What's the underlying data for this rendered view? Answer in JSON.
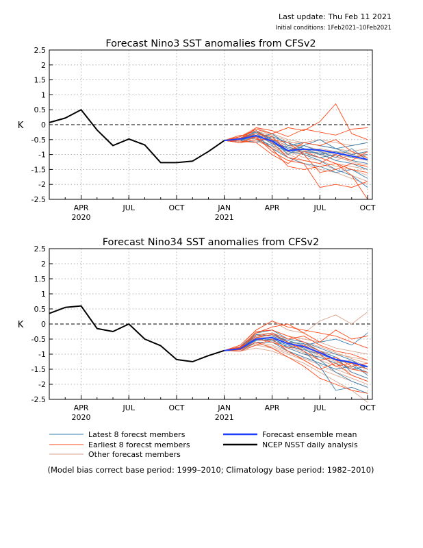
{
  "header": {
    "last_update": "Last update: Thu Feb 11 2021",
    "initial_conditions": "Initial conditions: 1Feb2021–10Feb2021"
  },
  "chart_data": [
    {
      "type": "line",
      "title": "Forecast Nino3 SST anomalies from CFSv2",
      "ylabel": "K",
      "ylim": [
        -2.5,
        2.5
      ],
      "yticks": [
        -2.5,
        -2,
        -1.5,
        -1,
        -0.5,
        0,
        0.5,
        1,
        1.5,
        2,
        2.5
      ],
      "ytick_labels": [
        "-2.5",
        "-2",
        "-1.5",
        "-1",
        "-0.5",
        "0",
        "0.5",
        "1",
        "1.5",
        "2",
        "2.5"
      ],
      "xlim": [
        0,
        20.3
      ],
      "xticks": [
        {
          "x": 2,
          "label": "APR",
          "year": "2020"
        },
        {
          "x": 5,
          "label": "JUL"
        },
        {
          "x": 8,
          "label": "OCT"
        },
        {
          "x": 11,
          "label": "JAN",
          "year": "2021"
        },
        {
          "x": 14,
          "label": "APR"
        },
        {
          "x": 17,
          "label": "JUL"
        },
        {
          "x": 20,
          "label": "OCT"
        }
      ],
      "grid": true,
      "zero_line": "dashed",
      "series": [
        {
          "name": "NCEP NSST daily analysis",
          "color": "#000000",
          "x": [
            0,
            1,
            2,
            3,
            4,
            5,
            6,
            7,
            8,
            9,
            10,
            11
          ],
          "y": [
            0.07,
            0.22,
            0.5,
            -0.18,
            -0.7,
            -0.48,
            -0.68,
            -1.27,
            -1.27,
            -1.22,
            -0.9,
            -0.53
          ]
        },
        {
          "name": "Forecast ensemble mean",
          "color": "#1f3fff",
          "x": [
            11,
            12,
            13,
            14,
            15,
            16,
            17,
            18,
            19,
            20
          ],
          "y": [
            -0.53,
            -0.48,
            -0.37,
            -0.55,
            -0.87,
            -0.82,
            -0.85,
            -0.95,
            -1.05,
            -1.17
          ]
        }
      ],
      "members": {
        "latest": [
          [
            -0.53,
            -0.55,
            -0.2,
            -0.6,
            -0.9,
            -1.0,
            -1.2,
            -1.5,
            -1.7,
            -2.1
          ],
          [
            -0.53,
            -0.5,
            -0.45,
            -0.3,
            -0.7,
            -0.6,
            -0.7,
            -0.8,
            -1.0,
            -0.9
          ],
          [
            -0.53,
            -0.4,
            -0.2,
            -0.5,
            -0.8,
            -0.95,
            -1.1,
            -1.0,
            -1.2,
            -1.3
          ],
          [
            -0.53,
            -0.6,
            -0.5,
            -0.7,
            -0.9,
            -0.7,
            -0.5,
            -0.8,
            -0.7,
            -0.6
          ],
          [
            -0.53,
            -0.45,
            -0.35,
            -0.8,
            -1.1,
            -1.3,
            -1.4,
            -1.6,
            -1.5,
            -1.8
          ],
          [
            -0.53,
            -0.5,
            -0.6,
            -0.4,
            -0.6,
            -0.8,
            -1.0,
            -0.9,
            -1.1,
            -1.0
          ],
          [
            -0.53,
            -0.55,
            -0.3,
            -0.65,
            -0.75,
            -0.9,
            -0.95,
            -1.2,
            -1.3,
            -1.5
          ],
          [
            -0.53,
            -0.45,
            -0.25,
            -0.5,
            -1.0,
            -0.7,
            -0.9,
            -1.1,
            -0.8,
            -1.2
          ]
        ],
        "earliest": [
          [
            -0.53,
            -0.4,
            -0.15,
            -0.3,
            -0.1,
            -0.2,
            0.1,
            0.7,
            -0.3,
            -0.5
          ],
          [
            -0.53,
            -0.6,
            -0.4,
            -0.9,
            -1.2,
            -1.3,
            -2.1,
            -2.0,
            -2.1,
            -1.9
          ],
          [
            -0.53,
            -0.35,
            -0.45,
            -0.8,
            -1.4,
            -1.5,
            -1.4,
            -1.3,
            -1.7,
            -2.5
          ],
          [
            -0.53,
            -0.5,
            -0.1,
            -0.2,
            -0.4,
            -0.15,
            -0.25,
            -0.35,
            -0.15,
            -0.1
          ],
          [
            -0.53,
            -0.55,
            -0.6,
            -1.0,
            -1.3,
            -0.9,
            -1.1,
            -1.3,
            -1.5,
            -1.6
          ],
          [
            -0.53,
            -0.45,
            -0.3,
            -0.4,
            -0.9,
            -0.6,
            -0.7,
            -0.5,
            -0.9,
            -1.1
          ],
          [
            -0.53,
            -0.6,
            -0.5,
            -0.5,
            -0.6,
            -1.0,
            -1.6,
            -1.5,
            -1.3,
            -1.4
          ],
          [
            -0.53,
            -0.4,
            -0.2,
            -0.6,
            -1.1,
            -1.2,
            -1.3,
            -1.0,
            -1.2,
            -0.9
          ]
        ],
        "other": [
          [
            -0.53,
            -0.5,
            -0.3,
            -0.5,
            -0.7,
            -0.8,
            -0.9,
            -1.0,
            -1.1,
            -1.2
          ],
          [
            -0.53,
            -0.55,
            -0.4,
            -0.6,
            -0.9,
            -1.1,
            -1.2,
            -1.4,
            -1.5,
            -1.7
          ],
          [
            -0.53,
            -0.45,
            -0.2,
            -0.4,
            -0.6,
            -0.6,
            -0.7,
            -0.8,
            -0.9,
            -0.8
          ],
          [
            -0.53,
            -0.6,
            -0.5,
            -0.8,
            -1.0,
            -1.2,
            -1.3,
            -1.5,
            -1.7,
            -1.9
          ],
          [
            -0.53,
            -0.5,
            -0.35,
            -0.55,
            -0.8,
            -0.9,
            -1.0,
            -1.2,
            -1.0,
            -1.1
          ],
          [
            -0.53,
            -0.4,
            -0.1,
            -0.3,
            -0.5,
            -0.6,
            -0.5,
            -0.6,
            -0.7,
            -0.6
          ],
          [
            -0.53,
            -0.55,
            -0.45,
            -0.7,
            -1.1,
            -1.3,
            -1.5,
            -1.6,
            -1.8,
            -2.0
          ],
          [
            -0.53,
            -0.5,
            -0.25,
            -0.45,
            -0.75,
            -0.85,
            -0.95,
            -1.05,
            -1.25,
            -1.35
          ],
          [
            -0.53,
            -0.45,
            -0.3,
            -0.6,
            -0.85,
            -1.0,
            -1.1,
            -1.3,
            -1.4,
            -1.5
          ],
          [
            -0.53,
            -0.6,
            -0.55,
            -0.75,
            -0.95,
            -0.9,
            -0.8,
            -0.9,
            -1.0,
            -0.9
          ],
          [
            -0.53,
            -0.5,
            -0.4,
            -0.5,
            -0.7,
            -0.7,
            -0.9,
            -1.1,
            -1.2,
            -1.3
          ],
          [
            -0.53,
            -0.45,
            -0.15,
            -0.35,
            -0.55,
            -0.7,
            -0.85,
            -0.9,
            -0.95,
            -1.0
          ]
        ]
      }
    },
    {
      "type": "line",
      "title": "Forecast Nino34 SST anomalies from CFSv2",
      "ylabel": "K",
      "ylim": [
        -2.5,
        2.5
      ],
      "yticks": [
        -2.5,
        -2,
        -1.5,
        -1,
        -0.5,
        0,
        0.5,
        1,
        1.5,
        2,
        2.5
      ],
      "ytick_labels": [
        "-2.5",
        "-2",
        "-1.5",
        "-1",
        "-0.5",
        "0",
        "0.5",
        "1",
        "1.5",
        "2",
        "2.5"
      ],
      "xlim": [
        0,
        20.3
      ],
      "xticks": [
        {
          "x": 2,
          "label": "APR",
          "year": "2020"
        },
        {
          "x": 5,
          "label": "JUL"
        },
        {
          "x": 8,
          "label": "OCT"
        },
        {
          "x": 11,
          "label": "JAN",
          "year": "2021"
        },
        {
          "x": 14,
          "label": "APR"
        },
        {
          "x": 17,
          "label": "JUL"
        },
        {
          "x": 20,
          "label": "OCT"
        }
      ],
      "grid": true,
      "zero_line": "dashed",
      "series": [
        {
          "name": "NCEP NSST daily analysis",
          "color": "#000000",
          "x": [
            0,
            1,
            2,
            3,
            4,
            5,
            6,
            7,
            8,
            9,
            10,
            11
          ],
          "y": [
            0.35,
            0.55,
            0.6,
            -0.15,
            -0.25,
            0.0,
            -0.5,
            -0.72,
            -1.18,
            -1.25,
            -1.05,
            -0.88
          ]
        },
        {
          "name": "Forecast ensemble mean",
          "color": "#1f3fff",
          "x": [
            11,
            12,
            13,
            14,
            15,
            16,
            17,
            18,
            19,
            20
          ],
          "y": [
            -0.88,
            -0.82,
            -0.5,
            -0.45,
            -0.65,
            -0.75,
            -0.95,
            -1.18,
            -1.27,
            -1.42
          ]
        }
      ],
      "members": {
        "latest": [
          [
            -0.88,
            -0.8,
            -0.4,
            -0.3,
            -0.6,
            -0.8,
            -1.2,
            -1.6,
            -1.9,
            -2.1
          ],
          [
            -0.88,
            -0.85,
            -0.55,
            -0.5,
            -0.7,
            -0.9,
            -1.4,
            -2.2,
            -2.1,
            -2.3
          ],
          [
            -0.88,
            -0.75,
            -0.3,
            -0.2,
            -0.5,
            -0.6,
            -0.8,
            -1.0,
            -1.2,
            -1.5
          ],
          [
            -0.88,
            -0.9,
            -0.6,
            -0.6,
            -0.9,
            -1.1,
            -1.3,
            -1.5,
            -1.4,
            -1.6
          ],
          [
            -0.88,
            -0.8,
            -0.45,
            -0.35,
            -0.55,
            -0.7,
            -0.6,
            -0.5,
            -0.7,
            -0.3
          ],
          [
            -0.88,
            -0.85,
            -0.5,
            -0.55,
            -0.75,
            -0.85,
            -1.0,
            -1.2,
            -1.3,
            -1.7
          ],
          [
            -0.88,
            -0.78,
            -0.35,
            -0.4,
            -0.6,
            -0.65,
            -0.9,
            -1.1,
            -1.6,
            -1.8
          ],
          [
            -0.88,
            -0.82,
            -0.52,
            -0.45,
            -0.8,
            -1.0,
            -1.1,
            -1.3,
            -1.5,
            -1.4
          ]
        ],
        "earliest": [
          [
            -0.88,
            -0.7,
            -0.2,
            0.1,
            -0.1,
            -0.2,
            -0.3,
            -0.4,
            -0.6,
            -0.8
          ],
          [
            -0.88,
            -0.85,
            -0.6,
            -0.8,
            -1.1,
            -1.4,
            -1.8,
            -2.0,
            -2.2,
            -2.3
          ],
          [
            -0.88,
            -0.8,
            -0.3,
            -0.1,
            0.0,
            -0.3,
            -0.6,
            -0.2,
            -0.5,
            -0.4
          ],
          [
            -0.88,
            -0.9,
            -0.7,
            -0.5,
            -0.9,
            -1.2,
            -1.5,
            -1.3,
            -1.7,
            -1.9
          ],
          [
            -0.88,
            -0.75,
            -0.4,
            -0.3,
            -0.5,
            -0.4,
            -0.7,
            -0.9,
            -1.0,
            -1.2
          ],
          [
            -0.88,
            -0.82,
            -0.25,
            -0.2,
            -0.4,
            -0.6,
            -0.9,
            -1.2,
            -1.5,
            -1.6
          ],
          [
            -0.88,
            -0.78,
            -0.5,
            -0.6,
            -0.8,
            -0.7,
            -1.0,
            -1.4,
            -1.3,
            -1.5
          ],
          [
            -0.88,
            -0.86,
            -0.45,
            -0.35,
            -0.6,
            -0.9,
            -1.2,
            -1.1,
            -1.4,
            -1.3
          ]
        ],
        "other": [
          [
            -0.88,
            -0.8,
            -0.5,
            -0.6,
            -0.8,
            -1.0,
            -1.2,
            -1.4,
            -1.6,
            -1.8
          ],
          [
            -0.88,
            -0.85,
            -0.7,
            -0.8,
            -1.0,
            -1.2,
            -1.5,
            -1.7,
            -1.9,
            -2.1
          ],
          [
            -0.88,
            -0.75,
            -0.2,
            0.1,
            -0.2,
            -0.3,
            0.1,
            0.3,
            0.0,
            0.4
          ],
          [
            -0.88,
            -0.9,
            -0.8,
            -0.9,
            -1.1,
            -1.3,
            -1.6,
            -1.9,
            -2.2,
            -2.6
          ],
          [
            -0.88,
            -0.8,
            -0.4,
            -0.4,
            -0.6,
            -0.7,
            -0.9,
            -1.0,
            -1.1,
            -1.2
          ],
          [
            -0.88,
            -0.82,
            -0.55,
            -0.5,
            -0.7,
            -0.8,
            -1.0,
            -1.2,
            -1.3,
            -1.5
          ],
          [
            -0.88,
            -0.78,
            -0.3,
            -0.2,
            -0.4,
            -0.5,
            -0.6,
            -0.8,
            -0.9,
            -1.0
          ],
          [
            -0.88,
            -0.86,
            -0.6,
            -0.7,
            -0.9,
            -1.1,
            -1.3,
            -1.5,
            -1.7,
            -1.9
          ],
          [
            -0.88,
            -0.8,
            -0.45,
            -0.45,
            -0.65,
            -0.85,
            -1.05,
            -1.25,
            -1.45,
            -1.65
          ],
          [
            -0.88,
            -0.84,
            -0.5,
            -0.55,
            -0.75,
            -0.95,
            -1.1,
            -1.3,
            -1.2,
            -1.4
          ],
          [
            -0.88,
            -0.77,
            -0.35,
            -0.3,
            -0.5,
            -0.6,
            -0.75,
            -0.95,
            -1.15,
            -1.3
          ],
          [
            -0.88,
            -0.83,
            -0.65,
            -0.75,
            -0.95,
            -1.15,
            -1.35,
            -1.6,
            -1.8,
            -2.0
          ]
        ]
      }
    }
  ],
  "legend": {
    "items": [
      {
        "label": "Latest 8 forecst members",
        "color": "#3a7fb0",
        "width": 1
      },
      {
        "label": "Earliest 8 forecst members",
        "color": "#ff4a1a",
        "width": 1
      },
      {
        "label": "Other forecast members",
        "color": "#d9a58e",
        "width": 1
      },
      {
        "label": "Forecast ensemble mean",
        "color": "#1f3fff",
        "width": 2.5
      },
      {
        "label": "NCEP NSST daily analysis",
        "color": "#000000",
        "width": 2.5
      }
    ]
  },
  "footnote": "(Model bias correct base period: 1999–2010; Climatology base period: 1982–2010)"
}
